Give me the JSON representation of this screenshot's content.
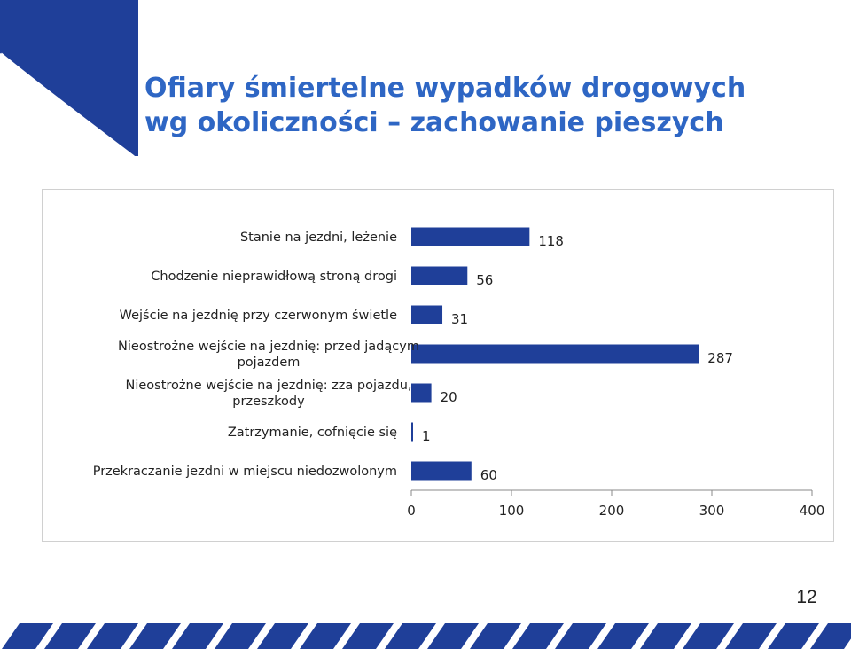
{
  "title": {
    "line1": "Ofiary śmiertelne wypadków drogowych",
    "line2": "wg okoliczności – zachowanie pieszych"
  },
  "page_number": "12",
  "colors": {
    "brand": "#1f3f99",
    "title": "#2e66c4",
    "bar": "#1f3f99"
  },
  "chart_data": {
    "type": "bar",
    "orientation": "horizontal",
    "categories": [
      [
        "Stanie na jezdni, leżenie"
      ],
      [
        "Chodzenie nieprawidłową stroną drogi"
      ],
      [
        "Wejście na jezdnię przy czerwonym świetle"
      ],
      [
        "Nieostrożne wejście na jezdnię: przed jadącym",
        "pojazdem"
      ],
      [
        "Nieostrożne wejście na jezdnię: zza pojazdu,",
        "przeszkody"
      ],
      [
        "Zatrzymanie, cofnięcie się"
      ],
      [
        "Przekraczanie jezdni w miejscu niedozwolonym"
      ]
    ],
    "values": [
      118,
      56,
      31,
      287,
      20,
      1,
      60
    ],
    "value_labels": [
      "118",
      "56",
      "31",
      "287",
      "20",
      "1",
      "60"
    ],
    "xlim": [
      0,
      400
    ],
    "xticks": [
      "0",
      "100",
      "200",
      "300",
      "400"
    ],
    "xtick_values": [
      0,
      100,
      200,
      300,
      400
    ],
    "grid": false,
    "legend": "none"
  }
}
